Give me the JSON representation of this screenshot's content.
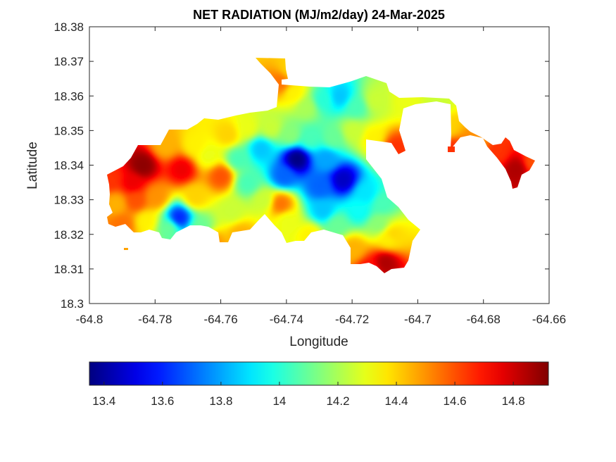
{
  "chart_data": {
    "type": "heatmap",
    "title": "NET RADIATION (MJ/m2/day) 24-Mar-2025",
    "xlabel": "Longitude",
    "ylabel": "Latitude",
    "xlim": [
      -64.8,
      -64.66
    ],
    "ylim": [
      18.3,
      18.38
    ],
    "x_ticks": [
      "-64.8",
      "-64.78",
      "-64.76",
      "-64.74",
      "-64.72",
      "-64.7",
      "-64.68",
      "-64.66"
    ],
    "x_tick_values": [
      -64.8,
      -64.78,
      -64.76,
      -64.74,
      -64.72,
      -64.7,
      -64.68,
      -64.66
    ],
    "y_ticks": [
      "18.3",
      "18.31",
      "18.32",
      "18.33",
      "18.34",
      "18.35",
      "18.36",
      "18.37",
      "18.38"
    ],
    "y_tick_values": [
      18.3,
      18.31,
      18.32,
      18.33,
      18.34,
      18.35,
      18.36,
      18.37,
      18.38
    ],
    "colormap": "jet",
    "color_range": [
      13.35,
      14.92
    ],
    "colorbar_ticks": [
      "13.4",
      "13.6",
      "13.8",
      "14",
      "14.2",
      "14.4",
      "14.6",
      "14.8"
    ],
    "colorbar_tick_values": [
      13.4,
      13.6,
      13.8,
      14.0,
      14.2,
      14.4,
      14.6,
      14.8
    ],
    "colorbar_position": "bottom",
    "grid": false,
    "features": [
      {
        "lon": -64.737,
        "lat": 18.342,
        "value": 13.35
      },
      {
        "lon": -64.723,
        "lat": 18.336,
        "value": 13.45
      },
      {
        "lon": -64.773,
        "lat": 18.325,
        "value": 13.6
      },
      {
        "lon": -64.748,
        "lat": 18.345,
        "value": 13.85
      },
      {
        "lon": -64.724,
        "lat": 18.36,
        "value": 13.85
      },
      {
        "lon": -64.784,
        "lat": 18.34,
        "value": 14.9
      },
      {
        "lon": -64.772,
        "lat": 18.339,
        "value": 14.75
      },
      {
        "lon": -64.71,
        "lat": 18.312,
        "value": 14.85
      },
      {
        "lon": -64.67,
        "lat": 18.339,
        "value": 14.85
      },
      {
        "lon": -64.76,
        "lat": 18.337,
        "value": 14.6
      },
      {
        "lon": -64.742,
        "lat": 18.329,
        "value": 14.55
      }
    ],
    "field_points": [
      [
        -64.794,
        18.336,
        14.65
      ],
      [
        -64.787,
        18.335,
        14.75
      ],
      [
        -64.786,
        18.33,
        14.6
      ],
      [
        -64.78,
        18.331,
        14.5
      ],
      [
        -64.792,
        18.329,
        14.45
      ],
      [
        -64.79,
        18.323,
        14.55
      ],
      [
        -64.783,
        18.324,
        14.35
      ],
      [
        -64.776,
        18.322,
        14.1
      ],
      [
        -64.766,
        18.322,
        14.1
      ],
      [
        -64.768,
        18.331,
        14.4
      ],
      [
        -64.777,
        18.346,
        14.45
      ],
      [
        -64.768,
        18.346,
        14.35
      ],
      [
        -64.764,
        18.343,
        14.3
      ],
      [
        -64.755,
        18.342,
        14.05
      ],
      [
        -64.752,
        18.335,
        14.05
      ],
      [
        -64.757,
        18.327,
        14.25
      ],
      [
        -64.763,
        18.318,
        14.5
      ],
      [
        -64.754,
        18.32,
        14.45
      ],
      [
        -64.747,
        18.33,
        14.25
      ],
      [
        -64.74,
        18.324,
        14.3
      ],
      [
        -64.733,
        18.32,
        14.35
      ],
      [
        -64.725,
        18.323,
        14.1
      ],
      [
        -64.718,
        18.327,
        13.95
      ],
      [
        -64.716,
        18.332,
        13.9
      ],
      [
        -64.712,
        18.323,
        14.15
      ],
      [
        -64.709,
        18.319,
        14.35
      ],
      [
        -64.72,
        18.316,
        14.45
      ],
      [
        -64.715,
        18.31,
        14.7
      ],
      [
        -64.729,
        18.327,
        13.85
      ],
      [
        -64.73,
        18.334,
        13.7
      ],
      [
        -64.728,
        18.342,
        13.8
      ],
      [
        -64.741,
        18.337,
        13.7
      ],
      [
        -64.745,
        18.351,
        14.25
      ],
      [
        -64.752,
        18.351,
        14.3
      ],
      [
        -64.758,
        18.349,
        14.4
      ],
      [
        -64.739,
        18.349,
        14.15
      ],
      [
        -64.733,
        18.348,
        14.05
      ],
      [
        -64.734,
        18.357,
        14.2
      ],
      [
        -64.738,
        18.361,
        14.35
      ],
      [
        -64.742,
        18.364,
        14.55
      ],
      [
        -64.739,
        18.368,
        14.4
      ],
      [
        -64.729,
        18.359,
        14.0
      ],
      [
        -64.719,
        18.357,
        14.05
      ],
      [
        -64.713,
        18.359,
        14.25
      ],
      [
        -64.72,
        18.35,
        14.25
      ],
      [
        -64.726,
        18.348,
        14.1
      ],
      [
        -64.714,
        18.348,
        14.35
      ],
      [
        -64.704,
        18.359,
        14.3
      ],
      [
        -64.694,
        18.358,
        14.25
      ],
      [
        -64.691,
        18.351,
        14.4
      ],
      [
        -64.682,
        18.347,
        14.5
      ],
      [
        -64.676,
        18.344,
        14.65
      ],
      [
        -64.665,
        18.341,
        14.6
      ],
      [
        -64.707,
        18.345,
        14.65
      ],
      [
        -64.69,
        18.345,
        14.65
      ],
      [
        -64.711,
        18.329,
        14.05
      ],
      [
        -64.708,
        18.32,
        14.4
      ]
    ]
  }
}
